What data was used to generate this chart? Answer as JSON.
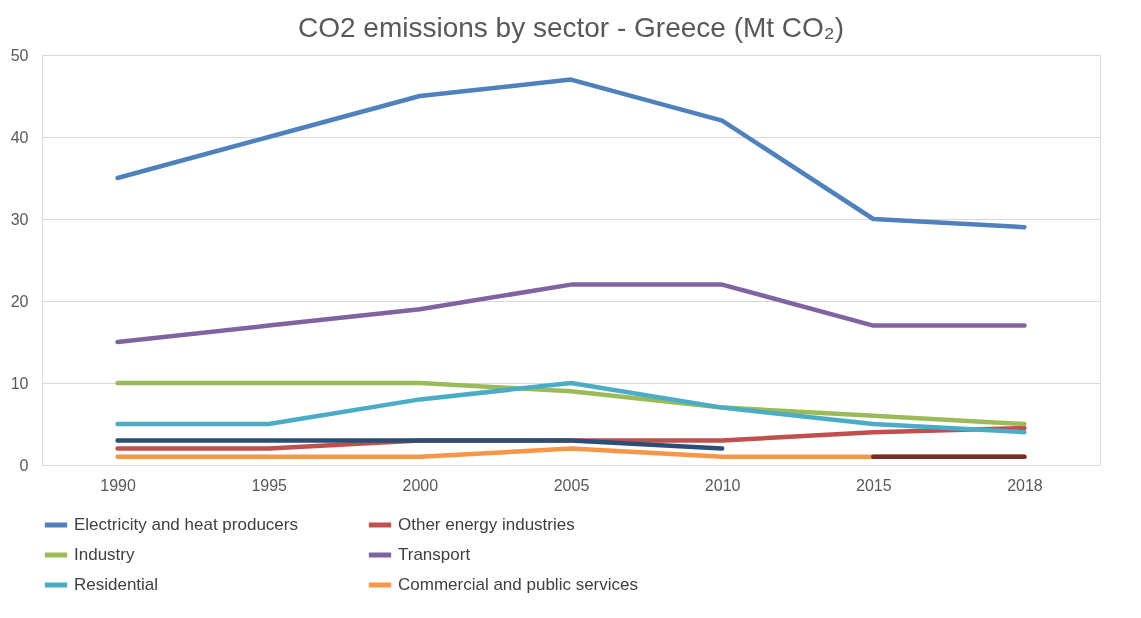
{
  "chart_data": {
    "type": "line",
    "title": "CO2 emissions by sector - Greece (Mt CO₂)",
    "categories": [
      "1990",
      "1995",
      "2000",
      "2005",
      "2010",
      "2015",
      "2018"
    ],
    "series": [
      {
        "name": "Electricity and heat producers",
        "color": "#4f81bd",
        "values": [
          35,
          40,
          45,
          47,
          42,
          30,
          29
        ]
      },
      {
        "name": "Other energy industries",
        "color": "#c0504d",
        "values": [
          2,
          2,
          3,
          3,
          3,
          4,
          4.5
        ]
      },
      {
        "name": "Industry",
        "color": "#9bbb59",
        "values": [
          10,
          10,
          10,
          9,
          7,
          6,
          5
        ]
      },
      {
        "name": "Transport",
        "color": "#8064a2",
        "values": [
          15,
          17,
          19,
          22,
          22,
          17,
          17
        ]
      },
      {
        "name": "Residential",
        "color": "#4bacc6",
        "values": [
          5,
          5,
          8,
          10,
          7,
          5,
          4
        ]
      },
      {
        "name": "Commercial and public services",
        "color": "#f79646",
        "values": [
          1,
          1,
          1,
          2,
          1,
          1,
          1
        ]
      },
      {
        "color": "#2c4d75",
        "values": [
          3,
          3,
          3,
          3,
          2,
          null,
          null
        ]
      },
      {
        "color": "#772c2a",
        "values": [
          null,
          null,
          null,
          null,
          null,
          1,
          1
        ]
      }
    ],
    "ylim": [
      0,
      50
    ],
    "yticks": [
      0,
      10,
      20,
      30,
      40,
      50
    ],
    "grid": "y",
    "legend": "bottom",
    "line_style": "solid",
    "marker": "none"
  }
}
